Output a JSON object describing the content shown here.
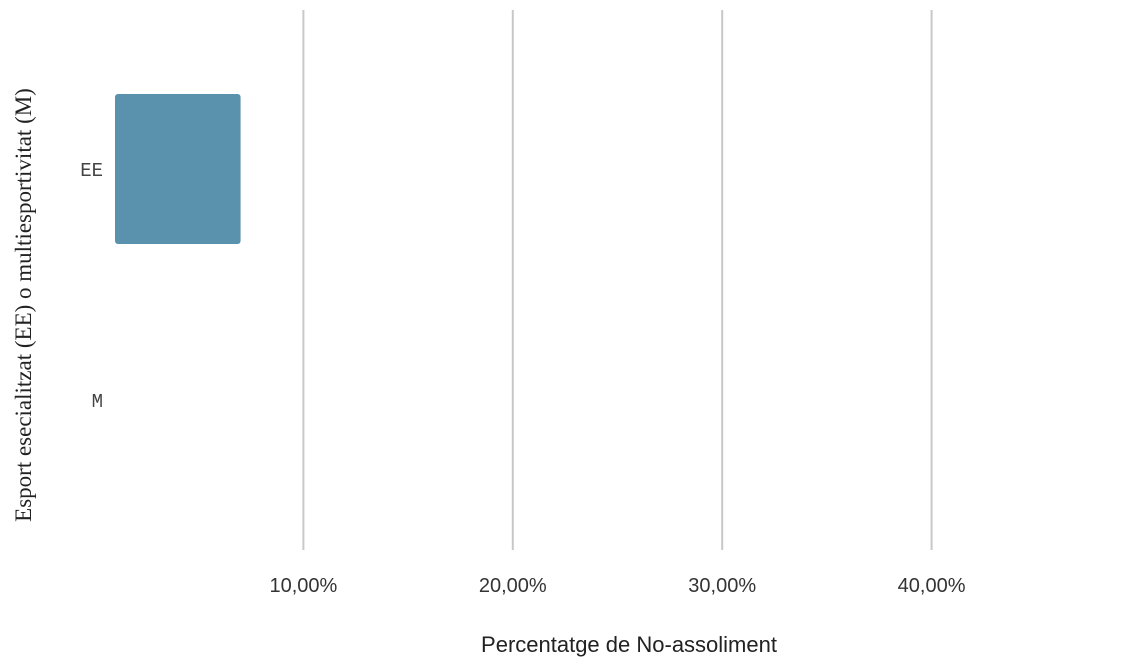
{
  "chart_data": {
    "type": "bar",
    "orientation": "horizontal",
    "title": "",
    "xlabel": "Percentatge de No-assoliment",
    "ylabel": "Esport esecialitzat (EE) o multiesportivitat (M)",
    "categories": [
      "EE",
      "M"
    ],
    "series": [
      {
        "values": [
          7.0,
          1.0
        ]
      }
    ],
    "xlim": [
      0,
      50
    ],
    "xticks": [
      10,
      20,
      30,
      40
    ],
    "xtick_labels": [
      "10,00%",
      "20,00%",
      "30,00%",
      "40,00%"
    ],
    "grid": "vertical",
    "legend": "none",
    "bar_color": "#5a92ad"
  }
}
